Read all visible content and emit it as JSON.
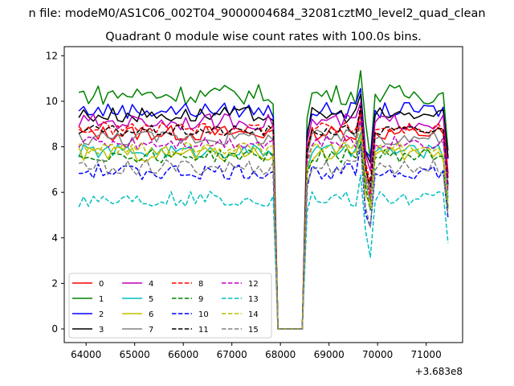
{
  "chart_data": {
    "type": "line",
    "suptitle": "n file: modeM0/AS1C06_002T04_9000004684_32081cztM0_level2_quad_clean",
    "title": "Quadrant 0 module wise count rates with 100.0s bins.",
    "xlabel": "",
    "ylabel": "",
    "x_offset_label": "+3.683e8",
    "xlim": [
      63550,
      71750
    ],
    "ylim": [
      -0.6,
      12.4
    ],
    "x_ticks": [
      64000,
      65000,
      66000,
      67000,
      68000,
      69000,
      70000,
      71000
    ],
    "y_ticks": [
      0,
      2,
      4,
      6,
      8,
      10,
      12
    ],
    "x_tick_labels": [
      "64000",
      "65000",
      "66000",
      "67000",
      "68000",
      "69000",
      "70000",
      "71000"
    ],
    "y_tick_labels": [
      "0",
      "2",
      "4",
      "6",
      "8",
      "10",
      "12"
    ],
    "gap": [
      67900,
      68500
    ],
    "peak_x": 69700,
    "x_start": 63850,
    "x_end": 71450,
    "x_step": 100,
    "legend_location": "lower left",
    "legend_columns": 4,
    "series": [
      {
        "name": "0",
        "color": "#ff0000",
        "dash": "solid",
        "level": 8.6,
        "amp": 0.35
      },
      {
        "name": "1",
        "color": "#008000",
        "dash": "solid",
        "level": 10.3,
        "amp": 0.45
      },
      {
        "name": "2",
        "color": "#0000ff",
        "dash": "solid",
        "level": 9.6,
        "amp": 0.35
      },
      {
        "name": "3",
        "color": "#000000",
        "dash": "solid",
        "level": 9.4,
        "amp": 0.35
      },
      {
        "name": "4",
        "color": "#bf00bf",
        "dash": "solid",
        "level": 9.1,
        "amp": 0.35
      },
      {
        "name": "5",
        "color": "#00bfbf",
        "dash": "solid",
        "level": 7.8,
        "amp": 0.3
      },
      {
        "name": "6",
        "color": "#bfbf00",
        "dash": "solid",
        "level": 7.7,
        "amp": 0.35
      },
      {
        "name": "7",
        "color": "#808080",
        "dash": "solid",
        "level": 8.4,
        "amp": 0.35
      },
      {
        "name": "8",
        "color": "#ff0000",
        "dash": "dashed",
        "level": 8.8,
        "amp": 0.3
      },
      {
        "name": "9",
        "color": "#008000",
        "dash": "dashed",
        "level": 7.6,
        "amp": 0.3
      },
      {
        "name": "10",
        "color": "#0000ff",
        "dash": "dashed",
        "level": 6.9,
        "amp": 0.35
      },
      {
        "name": "11",
        "color": "#000000",
        "dash": "dashed",
        "level": 8.7,
        "amp": 0.25
      },
      {
        "name": "12",
        "color": "#bf00bf",
        "dash": "dashed",
        "level": 8.2,
        "amp": 0.3
      },
      {
        "name": "13",
        "color": "#00bfbf",
        "dash": "dashed",
        "level": 5.7,
        "amp": 0.35
      },
      {
        "name": "14",
        "color": "#bfbf00",
        "dash": "dashed",
        "level": 7.9,
        "amp": 0.3
      },
      {
        "name": "15",
        "color": "#808080",
        "dash": "dashed",
        "level": 7.1,
        "amp": 0.35
      }
    ]
  }
}
